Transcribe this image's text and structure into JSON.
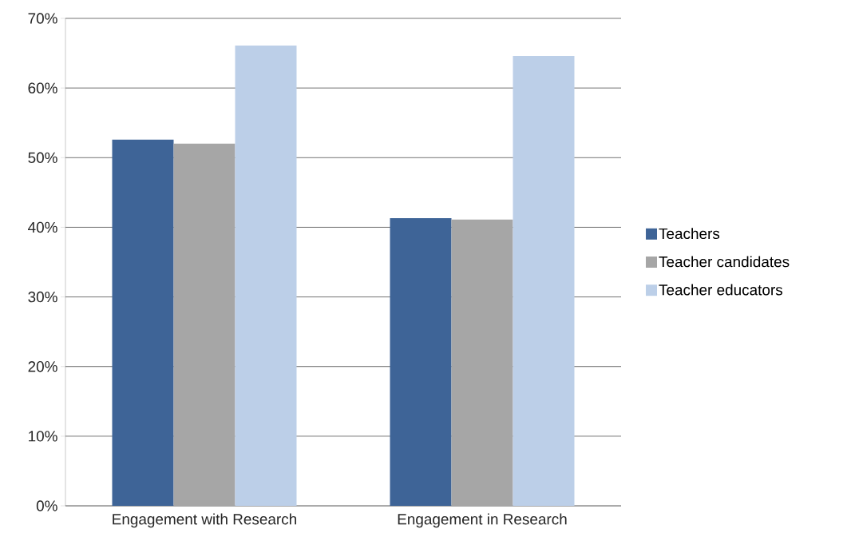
{
  "chart_data": {
    "type": "bar",
    "categories": [
      "Engagement with Research",
      "Engagement in Research"
    ],
    "series": [
      {
        "name": "Teachers",
        "color": "#3e6497",
        "values": [
          52.6,
          41.3
        ]
      },
      {
        "name": "Teacher candidates",
        "color": "#a6a6a6",
        "values": [
          52.0,
          41.1
        ]
      },
      {
        "name": "Teacher educators",
        "color": "#bccfe8",
        "values": [
          66.1,
          64.6
        ]
      }
    ],
    "ylim": [
      0,
      70
    ],
    "yticks": [
      {
        "value": 0,
        "label": "0%"
      },
      {
        "value": 10,
        "label": "10%"
      },
      {
        "value": 20,
        "label": "20%"
      },
      {
        "value": 30,
        "label": "30%"
      },
      {
        "value": 40,
        "label": "40%"
      },
      {
        "value": 50,
        "label": "50%"
      },
      {
        "value": 60,
        "label": "60%"
      },
      {
        "value": 70,
        "label": "70%"
      }
    ],
    "grid": "y",
    "legend": "right"
  }
}
